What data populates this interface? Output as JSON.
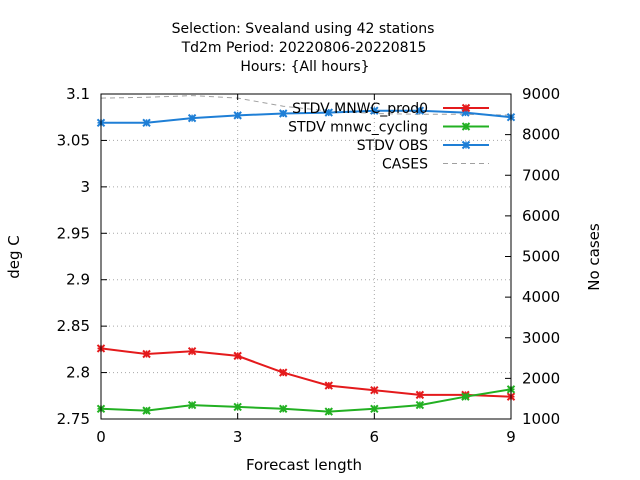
{
  "chart_data": {
    "type": "line",
    "title": [
      "Selection: Svealand using    42 stations",
      "Td2m   Period: 20220806-20220815",
      "Hours: {All hours}"
    ],
    "xlabel": "Forecast length",
    "ylabel": "deg C",
    "y2label": "No cases",
    "xlim": [
      0,
      9
    ],
    "ylim": [
      2.75,
      3.1
    ],
    "y2lim": [
      1000,
      9000
    ],
    "xticks": [
      "0",
      "3",
      "6",
      "9"
    ],
    "yticks": [
      "2.75",
      "2.8",
      "2.85",
      "2.9",
      "2.95",
      "3",
      "3.05",
      "3.1"
    ],
    "y2ticks": [
      "1000",
      "2000",
      "3000",
      "4000",
      "5000",
      "6000",
      "7000",
      "8000",
      "9000"
    ],
    "grid": true,
    "legend_position": "top-right",
    "x": [
      0,
      1,
      2,
      3,
      4,
      5,
      6,
      7,
      8,
      9
    ],
    "series": [
      {
        "name": "STDV MNWC_prod0",
        "axis": "left",
        "color": "#e41a1c",
        "marker": "x",
        "values": [
          2.826,
          2.82,
          2.823,
          2.818,
          2.8,
          2.786,
          2.781,
          2.776,
          2.776,
          2.774
        ]
      },
      {
        "name": "STDV mnwc_cycling",
        "axis": "left",
        "color": "#22b022",
        "marker": "x",
        "values": [
          2.761,
          2.759,
          2.765,
          2.763,
          2.761,
          2.758,
          2.761,
          2.765,
          2.774,
          2.782
        ]
      },
      {
        "name": "STDV OBS",
        "axis": "left",
        "color": "#1f7fd6",
        "marker": "x",
        "values": [
          3.069,
          3.069,
          3.074,
          3.077,
          3.079,
          3.08,
          3.082,
          3.082,
          3.08,
          3.075
        ]
      },
      {
        "name": "CASES",
        "axis": "right",
        "color": "#a0a0a0",
        "marker": "none",
        "dashed": true,
        "values": [
          8900,
          8920,
          8960,
          8900,
          8700,
          8580,
          8520,
          8500,
          8500,
          8480
        ]
      }
    ]
  }
}
